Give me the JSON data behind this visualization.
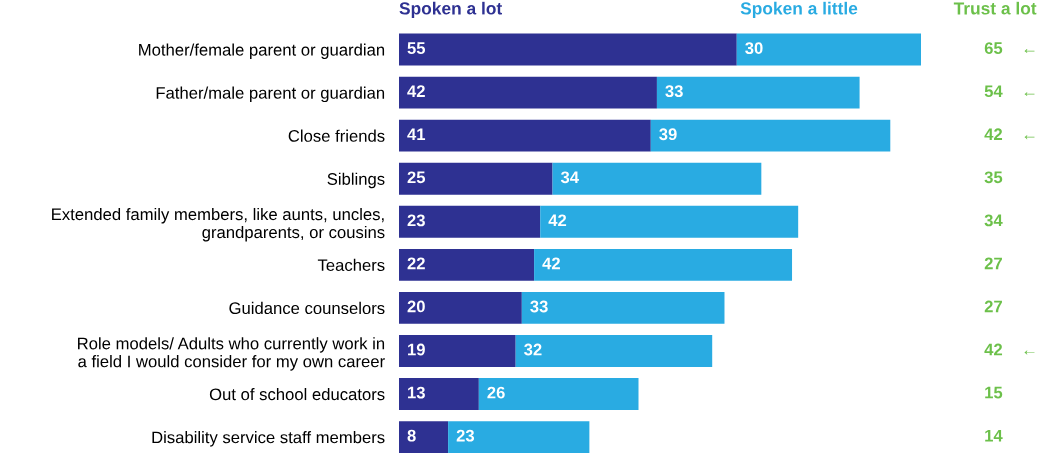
{
  "chart_data": {
    "type": "bar",
    "orientation": "horizontal",
    "stacked": true,
    "data_labels": true,
    "legend": "top",
    "grid": false,
    "tick_labels": "y",
    "xlim": [
      0,
      85
    ],
    "categories": [
      "Mother/female parent or guardian",
      "Father/male parent or guardian",
      "Close friends",
      "Siblings",
      "Extended family members, like aunts, uncles,\ngrandparents, or cousins",
      "Teachers",
      "Guidance counselors",
      "Role models/ Adults who currently work in\na field I would consider for my own career",
      "Out of school educators",
      "Disability service staff members"
    ],
    "series": [
      {
        "name": "Spoken a lot",
        "color": "#2e3192",
        "values": [
          55,
          42,
          41,
          25,
          23,
          22,
          20,
          19,
          13,
          8
        ]
      },
      {
        "name": "Spoken a little",
        "color": "#29abe2",
        "values": [
          30,
          33,
          39,
          34,
          42,
          42,
          33,
          32,
          26,
          23
        ]
      }
    ],
    "annotations": [
      "Trust a lot",
      "65    ←",
      "54    ←",
      "42    ←",
      "35",
      "34",
      "27",
      "27",
      "42    ←",
      "15",
      "14"
    ]
  }
}
